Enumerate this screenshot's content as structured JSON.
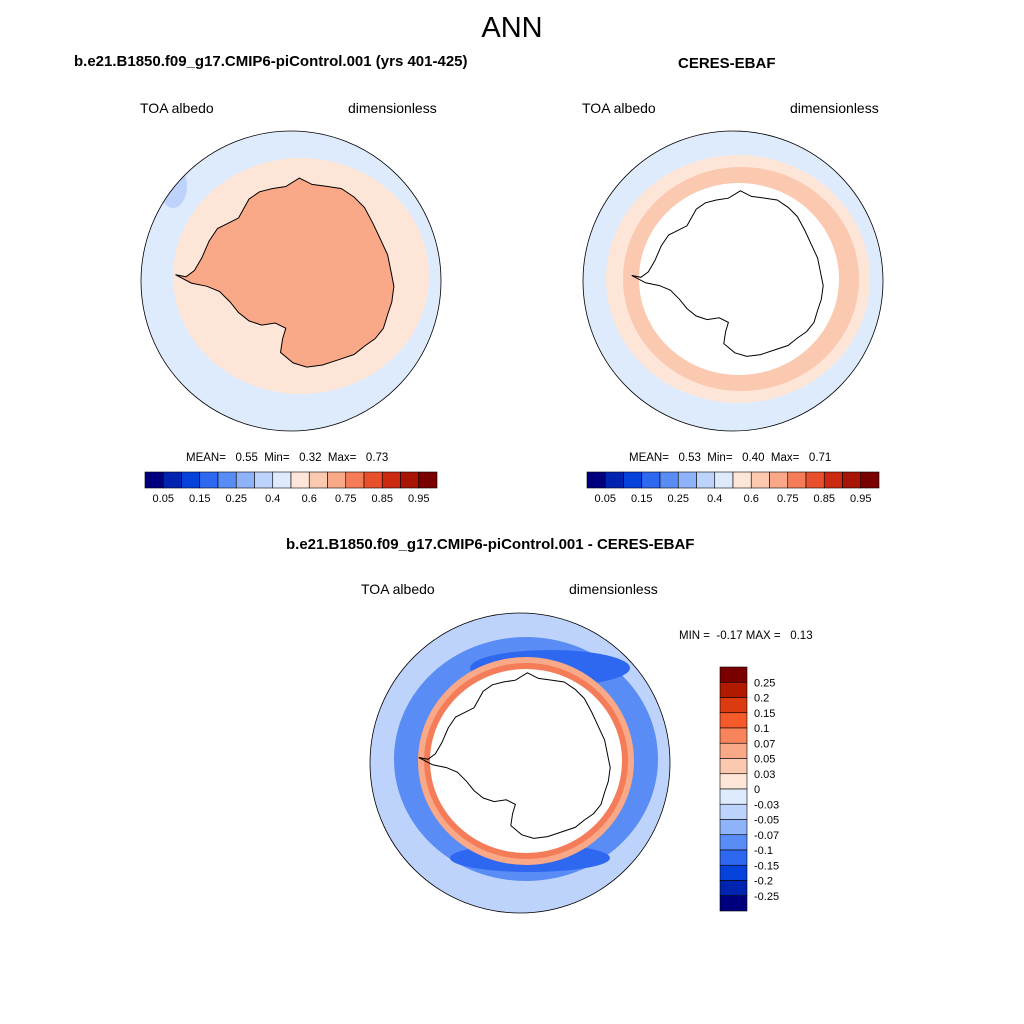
{
  "figure": {
    "season": "ANN",
    "panels": [
      {
        "title": "b.e21.B1850.f09_g17.CMIP6-piControl.001 (yrs 401-425)",
        "variable": "TOA albedo",
        "units": "dimensionless",
        "stats_text": "MEAN=   0.55  Min=   0.32  Max=   0.73"
      },
      {
        "title": "CERES-EBAF",
        "variable": "TOA albedo",
        "units": "dimensionless",
        "stats_text": "MEAN=   0.53  Min=   0.40  Max=   0.71"
      },
      {
        "title": "b.e21.B1850.f09_g17.CMIP6-piControl.001 - CERES-EBAF",
        "variable": "TOA albedo",
        "units": "dimensionless",
        "stats_text": "MIN =  -0.17 MAX =   0.13"
      }
    ]
  },
  "chart_data": [
    {
      "type": "heatmap",
      "projection": "south polar stereographic",
      "region": "Antarctica / Southern Ocean",
      "title": "b.e21.B1850.f09_g17.CMIP6-piControl.001 (yrs 401-425)",
      "stats": {
        "mean": 0.55,
        "min": 0.32,
        "max": 0.73
      },
      "colorbar": {
        "orientation": "horizontal",
        "tick_labels": [
          "0.05",
          "0.15",
          "0.25",
          "0.4",
          "0.6",
          "0.75",
          "0.85",
          "0.95"
        ],
        "colors": [
          "#00007e",
          "#0024b0",
          "#0542dc",
          "#2e68f0",
          "#5a8cf5",
          "#8fb3f8",
          "#bed3fb",
          "#deebfd",
          "#fde6d8",
          "#fbc8b0",
          "#f9a888",
          "#f57c58",
          "#e8502c",
          "#cc2a10",
          "#a81406",
          "#7a0000"
        ]
      },
      "field": {
        "ocean_far": "#deebfd",
        "ocean_near": "#fde6d8",
        "ice_sheet": "#f9a888",
        "coast_patch": "#bed3fb"
      }
    },
    {
      "type": "heatmap",
      "projection": "south polar stereographic",
      "region": "Antarctica / Southern Ocean",
      "title": "CERES-EBAF",
      "stats": {
        "mean": 0.53,
        "min": 0.4,
        "max": 0.71
      },
      "colorbar": {
        "orientation": "horizontal",
        "tick_labels": [
          "0.05",
          "0.15",
          "0.25",
          "0.4",
          "0.6",
          "0.75",
          "0.85",
          "0.95"
        ],
        "colors": [
          "#00007e",
          "#0024b0",
          "#0542dc",
          "#2e68f0",
          "#5a8cf5",
          "#8fb3f8",
          "#bed3fb",
          "#deebfd",
          "#fde6d8",
          "#fbc8b0",
          "#f9a888",
          "#f57c58",
          "#e8502c",
          "#cc2a10",
          "#a81406",
          "#7a0000"
        ]
      },
      "field": {
        "ocean_far": "#deebfd",
        "ring_outer": "#fde6d8",
        "ring_inner": "#fbc8b0",
        "ice_sheet_missing": "#ffffff"
      }
    },
    {
      "type": "heatmap",
      "projection": "south polar stereographic",
      "region": "Antarctica / Southern Ocean",
      "title": "b.e21.B1850.f09_g17.CMIP6-piControl.001 - CERES-EBAF",
      "stats": {
        "min": -0.17,
        "max": 0.13
      },
      "colorbar": {
        "orientation": "vertical",
        "tick_labels": [
          "0.25",
          "0.2",
          "0.15",
          "0.1",
          "0.07",
          "0.05",
          "0.03",
          "0",
          "-0.03",
          "-0.05",
          "-0.07",
          "-0.1",
          "-0.15",
          "-0.2",
          "-0.25"
        ],
        "colors": [
          "#7a0000",
          "#b01a00",
          "#dc3a10",
          "#f55a2a",
          "#f8845c",
          "#f9a888",
          "#fbc8b0",
          "#fde6d8",
          "#deebfd",
          "#bed3fb",
          "#8fb3f8",
          "#5a8cf5",
          "#2e68f0",
          "#0542dc",
          "#0024b0",
          "#00007e"
        ]
      },
      "field": {
        "ocean_far": "#bed3fb",
        "band_negative": "#5a8cf5",
        "band_strong_negative": "#2e68f0",
        "ring_positive": "#f9a888",
        "ring_core": "#f57c58",
        "ice_sheet_missing": "#ffffff"
      }
    }
  ]
}
